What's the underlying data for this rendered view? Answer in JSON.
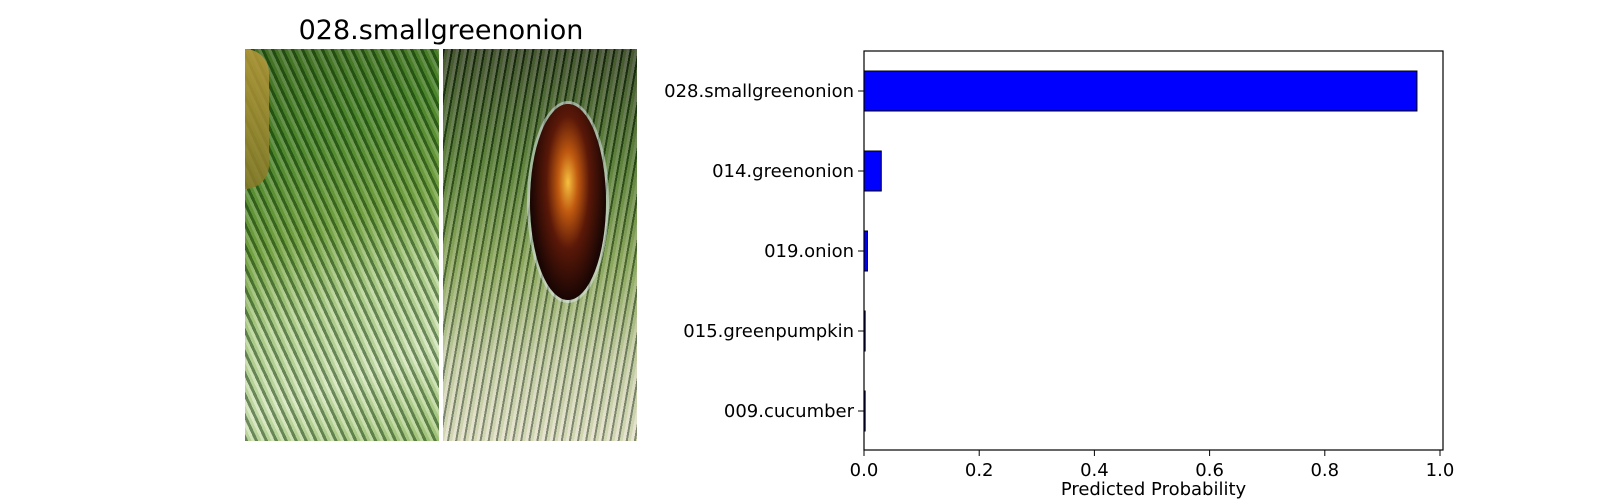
{
  "title": "028.smallgreenonion",
  "images": [
    {
      "name": "green-onion-photo",
      "caption": ""
    },
    {
      "name": "green-onion-with-insect-photo",
      "caption": ""
    }
  ],
  "chart_data": {
    "type": "bar",
    "orientation": "horizontal",
    "title": "",
    "xlabel": "Predicted Probability",
    "ylabel": "",
    "categories": [
      "028.smallgreenonion",
      "014.greenonion",
      "019.onion",
      "015.greenpumpkin",
      "009.cucumber"
    ],
    "values": [
      0.96,
      0.03,
      0.006,
      0.002,
      0.002
    ],
    "xlim": [
      0.0,
      1.0
    ],
    "xticks": [
      "0.0",
      "0.2",
      "0.4",
      "0.6",
      "0.8",
      "1.0"
    ],
    "bar_color": "#0000ff",
    "edge_color": "#000000",
    "grid": false
  }
}
